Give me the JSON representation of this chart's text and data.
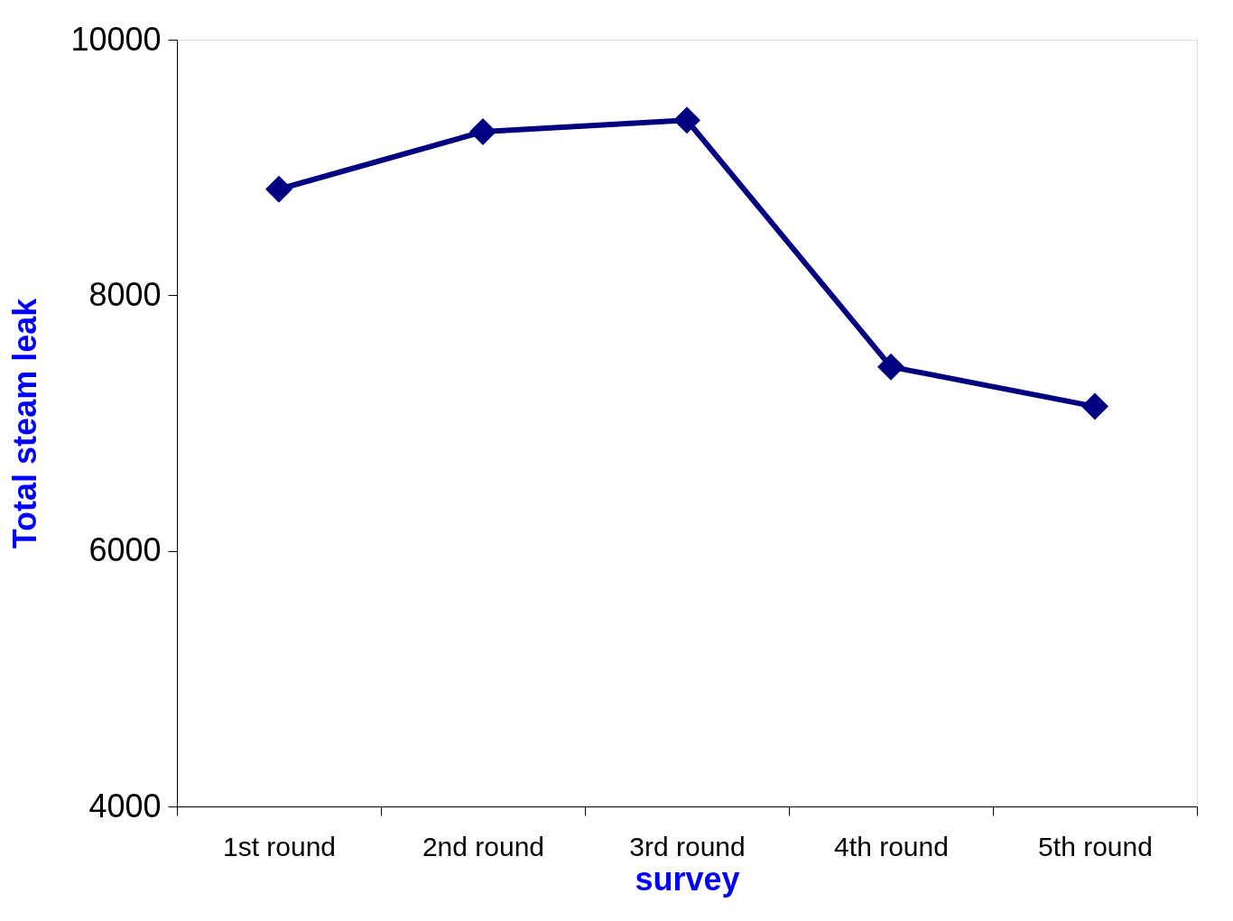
{
  "chart_data": {
    "type": "line",
    "xlabel": "survey",
    "ylabel": "Total steam leak",
    "categories": [
      "1st round",
      "2nd round",
      "3rd round",
      "4th round",
      "5th round"
    ],
    "series": [
      {
        "color": "#000080",
        "values": [
          8830,
          9280,
          9370,
          7440,
          7130
        ]
      }
    ],
    "ylim": [
      4000,
      10000
    ],
    "yticks": [
      4000,
      6000,
      8000,
      10000
    ],
    "grid": false,
    "marker": "diamond",
    "line_style": "solid"
  }
}
